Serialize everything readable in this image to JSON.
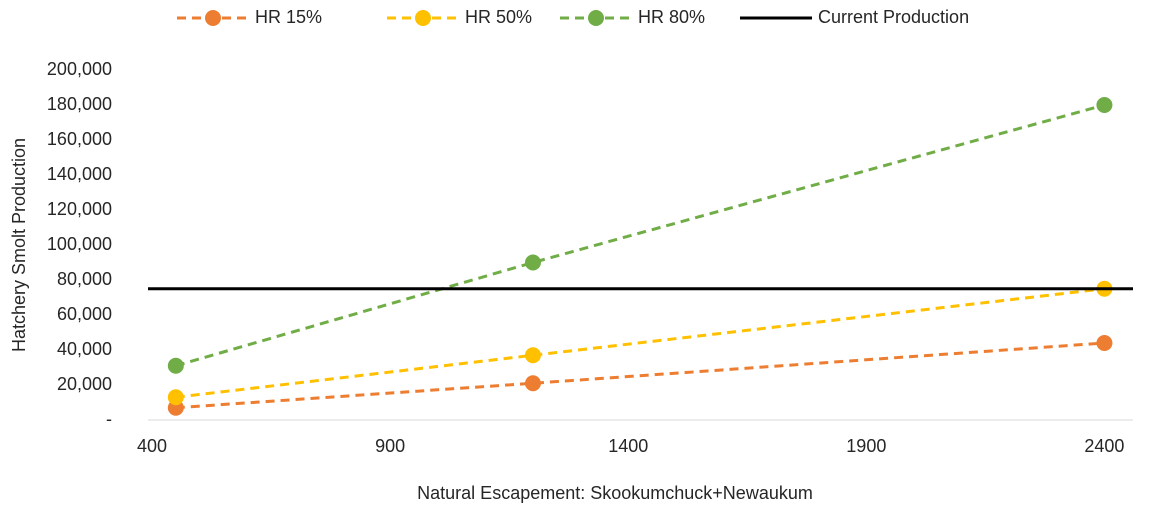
{
  "chart_data": {
    "type": "line",
    "x_label": "Natural Escapement: Skookumchuck+Newaukum",
    "y_label": "Hatchery Smolt Production",
    "x": [
      450,
      1200,
      2400
    ],
    "series": [
      {
        "name": "HR 15%",
        "color": "#ed7d31",
        "values": [
          7000,
          21000,
          44000
        ]
      },
      {
        "name": "HR 50%",
        "color": "#ffc000",
        "values": [
          13000,
          37000,
          75000
        ]
      },
      {
        "name": "HR 80%",
        "color": "#70ad47",
        "values": [
          31000,
          90000,
          180000
        ]
      }
    ],
    "reference_lines": [
      {
        "name": "Current Production",
        "value": 75000,
        "color": "#000000"
      }
    ],
    "xlim": [
      400,
      2460
    ],
    "xticks": [
      400,
      900,
      1400,
      1900,
      2400
    ],
    "ylim": [
      0,
      200000
    ],
    "yticks": [
      {
        "value": 0,
        "label": "-"
      },
      {
        "value": 20000,
        "label": "20,000"
      },
      {
        "value": 40000,
        "label": "40,000"
      },
      {
        "value": 60000,
        "label": "60,000"
      },
      {
        "value": 80000,
        "label": "80,000"
      },
      {
        "value": 100000,
        "label": "100,000"
      },
      {
        "value": 120000,
        "label": "120,000"
      },
      {
        "value": 140000,
        "label": "140,000"
      },
      {
        "value": 160000,
        "label": "160,000"
      },
      {
        "value": 180000,
        "label": "180,000"
      },
      {
        "value": 200000,
        "label": "200,000"
      }
    ],
    "line_style": "dashed",
    "legend": "top"
  }
}
